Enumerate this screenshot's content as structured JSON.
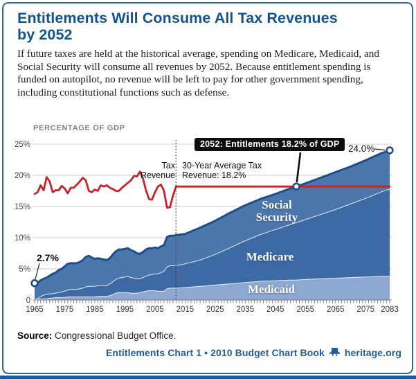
{
  "card": {
    "title_lines": [
      "Entitlements Will Consume All Tax Revenues",
      "by 2052"
    ],
    "description": "If future taxes are held at the historical average, spending on Medicare, Medicaid, and Social Security will consume all revenues by 2052. Because entitlement spending is funded on autopilot, no revenue will be left to pay for other government spending, including constitutional functions such as defense.",
    "source_label": "Source:",
    "source_text": "Congressional Budget Office.",
    "footer_text": "Entitlements Chart 1 • 2010 Budget Chart Book",
    "footer_site": "heritage.org"
  },
  "colors": {
    "title_blue": "#12548e",
    "border_blue": "#2a63a8",
    "footer_blue": "#1d5a9e",
    "tax_line_red": "#cc2127",
    "total_line_navy": "#1d4e8a",
    "social_security_fill": "#4c77ac",
    "medicare_fill": "#3d69a5",
    "medicaid_fill": "#8da9d1",
    "grid_gray": "#cccccc",
    "axis_text": "#333333",
    "callout_bg": "#0d0d0d"
  },
  "chart_data": {
    "type": "area",
    "stacked": true,
    "title": "PERCENTAGE OF GDP",
    "xlabel": "",
    "ylabel": "Percentage of GDP",
    "x_range": [
      1965,
      2083
    ],
    "ylim": [
      0,
      25
    ],
    "grid": true,
    "y_values": [
      25,
      20,
      15,
      10,
      5,
      0
    ],
    "y_ticks": [
      "25%",
      "20%",
      "15%",
      "10%",
      "5%",
      "0"
    ],
    "x_tick_labels": [
      1965,
      1975,
      1985,
      1995,
      2005,
      2015,
      2025,
      2035,
      2045,
      2055,
      2065,
      2075,
      2083
    ],
    "stack_order": [
      "Medicaid",
      "Medicare",
      "Social Security"
    ],
    "series": {
      "years": [
        1965,
        1966,
        1967,
        1968,
        1969,
        1970,
        1971,
        1972,
        1973,
        1974,
        1975,
        1976,
        1977,
        1978,
        1979,
        1980,
        1981,
        1982,
        1983,
        1984,
        1985,
        1986,
        1987,
        1988,
        1989,
        1990,
        1991,
        1992,
        1993,
        1994,
        1995,
        1996,
        1997,
        1998,
        1999,
        2000,
        2001,
        2002,
        2003,
        2004,
        2005,
        2006,
        2007,
        2008,
        2009,
        2010,
        2011,
        2012,
        2015,
        2020,
        2025,
        2030,
        2035,
        2040,
        2045,
        2050,
        2052,
        2055,
        2060,
        2065,
        2070,
        2075,
        2080,
        2083
      ],
      "medicaid": [
        0.05,
        0.1,
        0.15,
        0.2,
        0.2,
        0.3,
        0.3,
        0.4,
        0.4,
        0.4,
        0.4,
        0.5,
        0.5,
        0.5,
        0.5,
        0.5,
        0.5,
        0.5,
        0.5,
        0.5,
        0.5,
        0.6,
        0.6,
        0.6,
        0.6,
        0.7,
        0.9,
        1.1,
        1.2,
        1.2,
        1.2,
        1.2,
        1.1,
        1.1,
        1.1,
        1.2,
        1.3,
        1.4,
        1.5,
        1.5,
        1.5,
        1.4,
        1.4,
        1.4,
        1.8,
        1.9,
        1.9,
        1.9,
        2.0,
        2.2,
        2.4,
        2.6,
        2.8,
        3.0,
        3.1,
        3.2,
        3.2,
        3.3,
        3.4,
        3.5,
        3.6,
        3.7,
        3.8,
        3.8
      ],
      "medicare": [
        0.0,
        0.1,
        0.4,
        0.6,
        0.7,
        0.7,
        0.7,
        0.7,
        0.8,
        0.9,
        1.0,
        1.1,
        1.2,
        1.2,
        1.2,
        1.3,
        1.4,
        1.6,
        1.7,
        1.7,
        1.7,
        1.7,
        1.7,
        1.7,
        1.7,
        1.9,
        2.0,
        2.2,
        2.3,
        2.4,
        2.5,
        2.6,
        2.5,
        2.4,
        2.3,
        2.2,
        2.3,
        2.4,
        2.5,
        2.6,
        2.7,
        2.8,
        3.0,
        3.2,
        3.5,
        3.6,
        3.6,
        3.6,
        3.8,
        4.2,
        4.9,
        5.8,
        6.7,
        7.5,
        8.2,
        8.9,
        9.2,
        9.6,
        10.3,
        11.0,
        11.8,
        12.6,
        13.5,
        14.0
      ],
      "social_security": [
        2.65,
        2.6,
        2.6,
        2.6,
        2.7,
        2.9,
        3.2,
        3.3,
        3.6,
        3.7,
        4.0,
        4.2,
        4.2,
        4.2,
        4.2,
        4.3,
        4.5,
        4.8,
        4.9,
        4.6,
        4.4,
        4.4,
        4.3,
        4.2,
        4.1,
        4.1,
        4.4,
        4.5,
        4.6,
        4.5,
        4.5,
        4.5,
        4.4,
        4.3,
        4.1,
        4.0,
        4.1,
        4.3,
        4.3,
        4.2,
        4.2,
        4.1,
        4.2,
        4.2,
        4.8,
        4.8,
        4.8,
        4.9,
        4.8,
        5.2,
        5.4,
        5.6,
        5.7,
        5.7,
        5.7,
        5.8,
        5.8,
        5.8,
        5.9,
        6.0,
        6.0,
        6.1,
        6.2,
        6.2
      ]
    },
    "tax_revenue": {
      "name": "Tax Revenue",
      "years": [
        1965,
        1966,
        1967,
        1968,
        1969,
        1970,
        1971,
        1972,
        1973,
        1974,
        1975,
        1976,
        1977,
        1978,
        1979,
        1980,
        1981,
        1982,
        1983,
        1984,
        1985,
        1986,
        1987,
        1988,
        1989,
        1990,
        1991,
        1992,
        1993,
        1994,
        1995,
        1996,
        1997,
        1998,
        1999,
        2000,
        2001,
        2002,
        2003,
        2004,
        2005,
        2006,
        2007,
        2008,
        2009,
        2010,
        2011,
        2012,
        2083
      ],
      "values": [
        17.0,
        17.3,
        18.4,
        17.6,
        19.7,
        19.0,
        17.3,
        17.6,
        17.6,
        18.3,
        17.9,
        17.1,
        18.0,
        18.0,
        18.5,
        19.0,
        19.6,
        19.2,
        17.5,
        17.3,
        17.7,
        17.5,
        18.4,
        18.2,
        18.4,
        18.0,
        17.8,
        17.5,
        17.5,
        18.0,
        18.4,
        18.8,
        19.2,
        19.9,
        19.8,
        20.6,
        19.5,
        17.6,
        16.2,
        16.1,
        17.3,
        18.2,
        18.5,
        17.5,
        14.8,
        14.9,
        16.8,
        18.2,
        18.2
      ]
    },
    "annotations": {
      "callout": "2052: Entitlements 18.2% of GDP",
      "start_label": "2.7%",
      "end_label": "24.0%",
      "tax_label": "Tax\nRevenue",
      "avg_label": "30-Year Average Tax\nRevenue: 18.2%",
      "social_security_label": "Social\nSecurity",
      "medicare_label": "Medicare",
      "medicaid_label": "Medicaid",
      "divider_year": 2012
    },
    "markers": [
      {
        "year": 1965,
        "value": 2.7
      },
      {
        "year": 2052,
        "value": 18.2
      },
      {
        "year": 2083,
        "value": 24.0
      }
    ]
  }
}
